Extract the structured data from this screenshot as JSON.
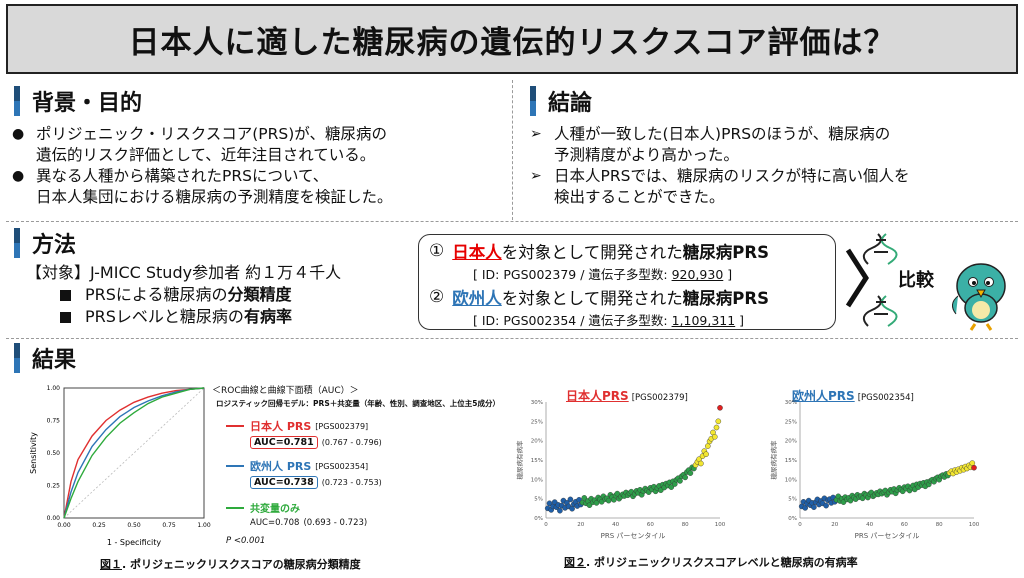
{
  "title": "日本人に適した糖尿病の遺伝的リスクスコア評価は？",
  "background": {
    "heading": "背景・目的",
    "bullet_marker": "●",
    "items": [
      {
        "line1": "ポリジェニック・リスクスコア(PRS)が、糖尿病の",
        "line2": "遺伝的リスク評価として、近年注目されている。"
      },
      {
        "line1": "異なる人種から構築されたPRSについて、",
        "line2": "日本人集団における糖尿病の予測精度を検証した。"
      }
    ]
  },
  "conclusion": {
    "heading": "結論",
    "bullet_marker": "➢",
    "items": [
      {
        "line1": "人種が一致した(日本人)PRSのほうが、糖尿病の",
        "line2": "予測精度がより高かった。"
      },
      {
        "line1": "日本人PRSでは、糖尿病のリスクが特に高い個人を",
        "line2": "検出することができた。"
      }
    ]
  },
  "methods": {
    "heading": "方法",
    "subject": "【対象】J-MICC Study参加者 約１万４千人",
    "items": [
      {
        "pre": "PRSによる糖尿病の",
        "bold": "分類精度"
      },
      {
        "pre": "PRSレベルと糖尿病の",
        "bold": "有病率"
      }
    ],
    "prs": [
      {
        "num": "①",
        "pop": "日本人",
        "mid": "を対象として開発された",
        "tail": "糖尿病PRS",
        "id": "[ ID: PGS002379 / 遺伝子多型数: ",
        "count": "920,930",
        "close": " ]"
      },
      {
        "num": "②",
        "pop": "欧州人",
        "mid": "を対象として開発された",
        "tail": "糖尿病PRS",
        "id": "[ ID: PGS002354 / 遺伝子多型数: ",
        "count": "1,109,311",
        "close": " ]"
      }
    ],
    "compare": "比較"
  },
  "results": {
    "heading": "結果",
    "roc": {
      "header": "＜ROC曲線と曲線下面積（AUC）＞",
      "model": "ロジスティック回帰モデル：PRS＋共変量（年齢、性別、調査地区、上位主5成分）",
      "ylabel": "Sensitivity",
      "xlabel": "1 - Specificity",
      "yticks": [
        "1.00",
        "0.75",
        "0.50",
        "0.25",
        "0.00"
      ],
      "xticks": [
        "0.00",
        "0.25",
        "0.50",
        "0.75",
        "1.00"
      ],
      "pvalue": "P <0.001",
      "legend": [
        {
          "name": "日本人 PRS",
          "id": "[PGS002379]",
          "auc": "AUC=0.781",
          "ci": "(0.767 - 0.796)",
          "color": "#e03030"
        },
        {
          "name": "欧州人 PRS",
          "id": "[PGS002354]",
          "auc": "AUC=0.738",
          "ci": "(0.723 - 0.753)",
          "color": "#2e75b6"
        },
        {
          "name": "共変量のみ",
          "id": "",
          "auc": "AUC=0.708",
          "ci": "(0.693 - 0.723)",
          "color": "#2eaa3c"
        }
      ],
      "caption_num": "図１",
      "caption": ". ポリジェニックリスクスコアの糖尿病分類精度"
    },
    "scatter": {
      "ylabel": "糖尿病有病率",
      "xlabel": "PRS パーセンタイル",
      "yticks": [
        "30%",
        "25%",
        "20%",
        "15%",
        "10%",
        "5%",
        "0%"
      ],
      "xticks": [
        "0",
        "20",
        "40",
        "60",
        "80",
        "100"
      ],
      "plots": [
        {
          "name": "日本人PRS",
          "id": "[PGS002379]",
          "color": "#e03030"
        },
        {
          "name": "欧州人PRS",
          "id": "[PGS002354]",
          "color": "#2e75b6"
        }
      ],
      "caption_num": "図２",
      "caption": ". ポリジェニックリスクスコアレベルと糖尿病の有病率"
    }
  },
  "chart_data": [
    {
      "type": "line",
      "title": "ROC曲線と曲線下面積（AUC）",
      "xlabel": "1 - Specificity",
      "ylabel": "Sensitivity",
      "xlim": [
        0,
        1
      ],
      "ylim": [
        0,
        1
      ],
      "series": [
        {
          "name": "日本人 PRS",
          "auc": 0.781,
          "x": [
            0,
            0.05,
            0.1,
            0.2,
            0.3,
            0.4,
            0.5,
            0.6,
            0.7,
            0.8,
            0.9,
            1
          ],
          "y": [
            0,
            0.28,
            0.45,
            0.63,
            0.75,
            0.83,
            0.89,
            0.93,
            0.96,
            0.98,
            0.99,
            1
          ]
        },
        {
          "name": "欧州人 PRS",
          "auc": 0.738,
          "x": [
            0,
            0.05,
            0.1,
            0.2,
            0.3,
            0.4,
            0.5,
            0.6,
            0.7,
            0.8,
            0.9,
            1
          ],
          "y": [
            0,
            0.2,
            0.35,
            0.55,
            0.68,
            0.78,
            0.85,
            0.9,
            0.94,
            0.97,
            0.99,
            1
          ]
        },
        {
          "name": "共変量のみ",
          "auc": 0.708,
          "x": [
            0,
            0.05,
            0.1,
            0.2,
            0.3,
            0.4,
            0.5,
            0.6,
            0.7,
            0.8,
            0.9,
            1
          ],
          "y": [
            0,
            0.15,
            0.28,
            0.48,
            0.62,
            0.73,
            0.81,
            0.88,
            0.93,
            0.96,
            0.99,
            1
          ]
        }
      ]
    },
    {
      "type": "scatter",
      "title": "日本人PRS [PGS002379]",
      "xlabel": "PRS パーセンタイル",
      "ylabel": "糖尿病有病率",
      "xlim": [
        0,
        100
      ],
      "ylim": [
        0,
        30
      ],
      "x": [
        1,
        2,
        3,
        4,
        5,
        6,
        7,
        8,
        9,
        10,
        11,
        12,
        13,
        14,
        15,
        16,
        17,
        18,
        19,
        20,
        21,
        22,
        23,
        24,
        25,
        26,
        27,
        28,
        29,
        30,
        31,
        32,
        33,
        34,
        35,
        36,
        37,
        38,
        39,
        40,
        41,
        42,
        43,
        44,
        45,
        46,
        47,
        48,
        49,
        50,
        51,
        52,
        53,
        54,
        55,
        56,
        57,
        58,
        59,
        60,
        61,
        62,
        63,
        64,
        65,
        66,
        67,
        68,
        69,
        70,
        71,
        72,
        73,
        74,
        75,
        76,
        77,
        78,
        79,
        80,
        81,
        82,
        83,
        84,
        85,
        86,
        87,
        88,
        89,
        90,
        91,
        92,
        93,
        94,
        95,
        96,
        97,
        98,
        99,
        100
      ],
      "y": [
        2.5,
        3.8,
        2.1,
        3.0,
        4.1,
        2.8,
        3.4,
        1.9,
        3.2,
        4.5,
        2.6,
        3.9,
        3.0,
        4.8,
        2.4,
        3.6,
        4.2,
        3.1,
        4.7,
        3.5,
        4.0,
        5.2,
        3.8,
        4.4,
        3.3,
        5.0,
        4.1,
        4.6,
        3.9,
        5.3,
        4.8,
        4.2,
        5.6,
        4.9,
        5.1,
        4.5,
        6.0,
        5.4,
        4.7,
        5.8,
        6.3,
        5.0,
        5.5,
        6.1,
        5.7,
        6.6,
        5.9,
        6.4,
        6.8,
        5.6,
        6.2,
        7.0,
        6.5,
        7.3,
        6.0,
        6.9,
        7.6,
        7.1,
        6.7,
        7.8,
        7.4,
        8.1,
        6.9,
        7.7,
        8.3,
        7.2,
        8.6,
        7.9,
        8.9,
        8.4,
        9.2,
        8.0,
        9.5,
        8.8,
        9.9,
        10.3,
        9.6,
        10.8,
        11.2,
        10.5,
        11.9,
        12.4,
        11.6,
        13.1,
        12.8,
        13.7,
        14.5,
        15.2,
        14.1,
        16.0,
        17.3,
        16.5,
        18.6,
        19.8,
        20.5,
        22.1,
        21.0,
        23.4,
        25.0,
        28.5
      ]
    },
    {
      "type": "scatter",
      "title": "欧州人PRS [PGS002354]",
      "xlabel": "PRS パーセンタイル",
      "ylabel": "糖尿病有病率",
      "xlim": [
        0,
        100
      ],
      "ylim": [
        0,
        30
      ],
      "x": [
        1,
        2,
        3,
        4,
        5,
        6,
        7,
        8,
        9,
        10,
        11,
        12,
        13,
        14,
        15,
        16,
        17,
        18,
        19,
        20,
        21,
        22,
        23,
        24,
        25,
        26,
        27,
        28,
        29,
        30,
        31,
        32,
        33,
        34,
        35,
        36,
        37,
        38,
        39,
        40,
        41,
        42,
        43,
        44,
        45,
        46,
        47,
        48,
        49,
        50,
        51,
        52,
        53,
        54,
        55,
        56,
        57,
        58,
        59,
        60,
        61,
        62,
        63,
        64,
        65,
        66,
        67,
        68,
        69,
        70,
        71,
        72,
        73,
        74,
        75,
        76,
        77,
        78,
        79,
        80,
        81,
        82,
        83,
        84,
        85,
        86,
        87,
        88,
        89,
        90,
        91,
        92,
        93,
        94,
        95,
        96,
        97,
        98,
        99,
        100
      ],
      "y": [
        3.0,
        4.2,
        2.6,
        3.7,
        4.5,
        3.3,
        3.9,
        2.8,
        4.1,
        4.8,
        3.5,
        4.4,
        3.8,
        5.1,
        3.2,
        4.6,
        4.9,
        3.9,
        5.3,
        4.2,
        4.7,
        5.6,
        4.4,
        5.0,
        4.1,
        5.4,
        4.8,
        5.2,
        4.5,
        5.8,
        5.3,
        4.9,
        6.0,
        5.4,
        5.7,
        5.1,
        6.3,
        5.9,
        5.3,
        6.2,
        6.6,
        5.6,
        6.0,
        6.5,
        6.1,
        6.9,
        6.3,
        6.7,
        7.1,
        6.0,
        6.6,
        7.3,
        6.8,
        7.5,
        6.4,
        7.2,
        7.8,
        7.3,
        6.9,
        8.0,
        7.6,
        8.2,
        7.1,
        7.9,
        8.4,
        7.4,
        8.7,
        8.0,
        8.9,
        8.5,
        9.1,
        8.2,
        9.3,
        8.7,
        9.6,
        9.9,
        9.4,
        10.2,
        10.5,
        9.9,
        10.8,
        11.1,
        10.6,
        11.4,
        11.0,
        11.7,
        12.1,
        11.5,
        12.4,
        11.9,
        12.6,
        12.2,
        13.0,
        12.5,
        13.3,
        12.8,
        13.6,
        13.1,
        14.2,
        13.0
      ]
    }
  ]
}
